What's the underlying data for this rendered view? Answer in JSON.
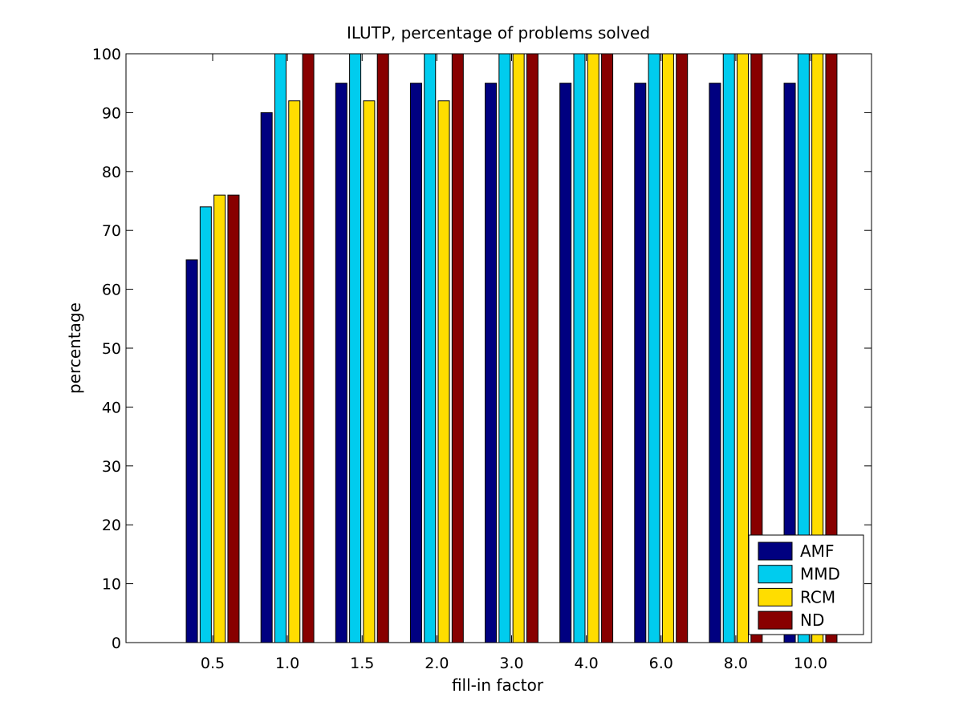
{
  "chart_data": {
    "type": "bar",
    "title": "ILUTP, percentage of problems solved",
    "xlabel": "fill-in factor",
    "ylabel": "percentage",
    "categories": [
      "0.5",
      "1.0",
      "1.5",
      "2.0",
      "3.0",
      "4.0",
      "6.0",
      "8.0",
      "10.0"
    ],
    "ylim": [
      0,
      100
    ],
    "yticks": [
      0,
      10,
      20,
      30,
      40,
      50,
      60,
      70,
      80,
      90,
      100
    ],
    "grid": false,
    "legend_position": "bottom-right",
    "series": [
      {
        "name": "AMF",
        "color": "#000080",
        "values": [
          65,
          90,
          95,
          95,
          95,
          95,
          95,
          95,
          95
        ]
      },
      {
        "name": "MMD",
        "color": "#00ccee",
        "values": [
          74,
          100,
          100,
          100,
          100,
          100,
          100,
          100,
          100
        ]
      },
      {
        "name": "RCM",
        "color": "#ffdd00",
        "values": [
          76,
          92,
          92,
          92,
          100,
          100,
          100,
          100,
          100
        ]
      },
      {
        "name": "ND",
        "color": "#880000",
        "values": [
          76,
          100,
          100,
          100,
          100,
          100,
          100,
          100,
          100
        ]
      }
    ]
  }
}
